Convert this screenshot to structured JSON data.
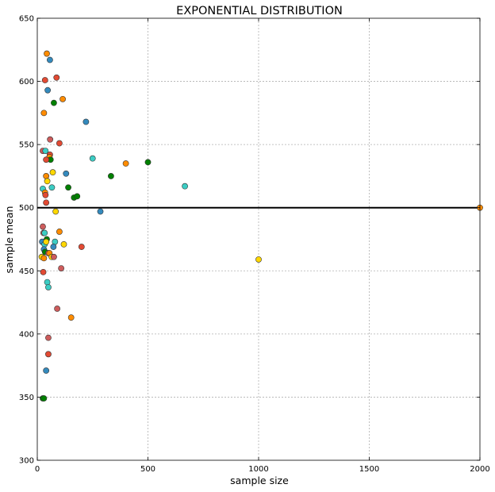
{
  "chart_data": {
    "type": "scatter",
    "title": "EXPONENTIAL DISTRIBUTION",
    "xlabel": "sample size",
    "ylabel": "sample mean",
    "xlim": [
      0,
      2000
    ],
    "ylim": [
      300,
      650
    ],
    "xticks": [
      0,
      500,
      1000,
      1500,
      2000
    ],
    "yticks": [
      300,
      350,
      400,
      450,
      500,
      550,
      600,
      650
    ],
    "grid": true,
    "reference_line": {
      "y": 500,
      "color": "#000000"
    },
    "colors": {
      "orange": "#ff8c00",
      "red": "#e24a33",
      "blue": "#348abd",
      "green": "#008000",
      "cyan": "#3ccdc4",
      "yellow": "#ffd700",
      "salmon": "#cd5c5c"
    },
    "points": [
      {
        "x": 43,
        "y": 622,
        "c": "orange"
      },
      {
        "x": 57,
        "y": 617,
        "c": "blue"
      },
      {
        "x": 35,
        "y": 601,
        "c": "red"
      },
      {
        "x": 87,
        "y": 603,
        "c": "red"
      },
      {
        "x": 47,
        "y": 593,
        "c": "blue"
      },
      {
        "x": 115,
        "y": 586,
        "c": "orange"
      },
      {
        "x": 75,
        "y": 583,
        "c": "green"
      },
      {
        "x": 30,
        "y": 575,
        "c": "orange"
      },
      {
        "x": 220,
        "y": 568,
        "c": "blue"
      },
      {
        "x": 58,
        "y": 554,
        "c": "salmon"
      },
      {
        "x": 100,
        "y": 551,
        "c": "red"
      },
      {
        "x": 25,
        "y": 545,
        "c": "salmon"
      },
      {
        "x": 37,
        "y": 545,
        "c": "cyan"
      },
      {
        "x": 57,
        "y": 542,
        "c": "red"
      },
      {
        "x": 55,
        "y": 540,
        "c": "orange"
      },
      {
        "x": 60,
        "y": 538,
        "c": "green"
      },
      {
        "x": 40,
        "y": 538,
        "c": "red"
      },
      {
        "x": 250,
        "y": 539,
        "c": "cyan"
      },
      {
        "x": 400,
        "y": 535,
        "c": "orange"
      },
      {
        "x": 500,
        "y": 536,
        "c": "green"
      },
      {
        "x": 70,
        "y": 528,
        "c": "yellow"
      },
      {
        "x": 130,
        "y": 527,
        "c": "blue"
      },
      {
        "x": 333,
        "y": 525,
        "c": "green"
      },
      {
        "x": 40,
        "y": 525,
        "c": "orange"
      },
      {
        "x": 45,
        "y": 521,
        "c": "yellow"
      },
      {
        "x": 667,
        "y": 517,
        "c": "cyan"
      },
      {
        "x": 25,
        "y": 515,
        "c": "cyan"
      },
      {
        "x": 66,
        "y": 516,
        "c": "cyan"
      },
      {
        "x": 140,
        "y": 516,
        "c": "green"
      },
      {
        "x": 35,
        "y": 512,
        "c": "orange"
      },
      {
        "x": 37,
        "y": 510,
        "c": "red"
      },
      {
        "x": 166,
        "y": 508,
        "c": "green"
      },
      {
        "x": 180,
        "y": 509,
        "c": "green"
      },
      {
        "x": 40,
        "y": 504,
        "c": "red"
      },
      {
        "x": 83,
        "y": 497,
        "c": "yellow"
      },
      {
        "x": 285,
        "y": 497,
        "c": "blue"
      },
      {
        "x": 2000,
        "y": 500,
        "c": "orange"
      },
      {
        "x": 25,
        "y": 485,
        "c": "salmon"
      },
      {
        "x": 100,
        "y": 481,
        "c": "orange"
      },
      {
        "x": 28,
        "y": 480,
        "c": "salmon"
      },
      {
        "x": 33,
        "y": 480,
        "c": "cyan"
      },
      {
        "x": 43,
        "y": 475,
        "c": "green"
      },
      {
        "x": 22,
        "y": 473,
        "c": "blue"
      },
      {
        "x": 33,
        "y": 471,
        "c": "cyan"
      },
      {
        "x": 40,
        "y": 473,
        "c": "yellow"
      },
      {
        "x": 80,
        "y": 473,
        "c": "cyan"
      },
      {
        "x": 120,
        "y": 471,
        "c": "yellow"
      },
      {
        "x": 73,
        "y": 469,
        "c": "blue"
      },
      {
        "x": 30,
        "y": 467,
        "c": "blue"
      },
      {
        "x": 200,
        "y": 469,
        "c": "red"
      },
      {
        "x": 35,
        "y": 465,
        "c": "green"
      },
      {
        "x": 50,
        "y": 464,
        "c": "salmon"
      },
      {
        "x": 55,
        "y": 464,
        "c": "orange"
      },
      {
        "x": 20,
        "y": 461,
        "c": "yellow"
      },
      {
        "x": 30,
        "y": 460,
        "c": "orange"
      },
      {
        "x": 65,
        "y": 461,
        "c": "yellow"
      },
      {
        "x": 75,
        "y": 461,
        "c": "salmon"
      },
      {
        "x": 1000,
        "y": 459,
        "c": "yellow"
      },
      {
        "x": 108,
        "y": 452,
        "c": "salmon"
      },
      {
        "x": 27,
        "y": 449,
        "c": "red"
      },
      {
        "x": 45,
        "y": 441,
        "c": "cyan"
      },
      {
        "x": 50,
        "y": 437,
        "c": "cyan"
      },
      {
        "x": 90,
        "y": 420,
        "c": "salmon"
      },
      {
        "x": 153,
        "y": 413,
        "c": "orange"
      },
      {
        "x": 50,
        "y": 397,
        "c": "salmon"
      },
      {
        "x": 50,
        "y": 384,
        "c": "red"
      },
      {
        "x": 40,
        "y": 371,
        "c": "blue"
      },
      {
        "x": 25,
        "y": 349,
        "c": "green"
      },
      {
        "x": 30,
        "y": 349,
        "c": "green"
      }
    ]
  }
}
